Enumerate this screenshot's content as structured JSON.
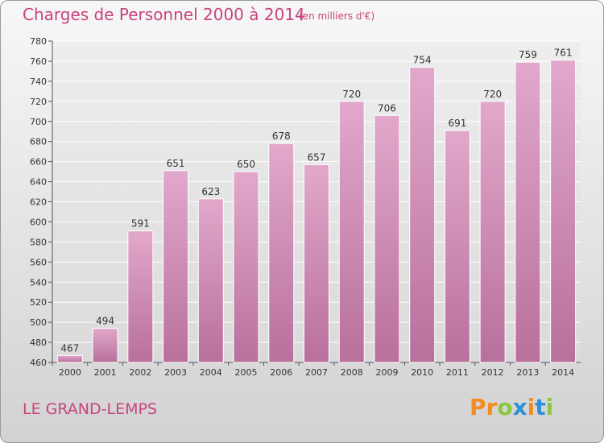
{
  "header": {
    "title": "Charges de Personnel 2000 à 2014",
    "subtitle": "(en milliers d'€)"
  },
  "footer": {
    "commune": "LE GRAND-LEMPS",
    "logo_text": "Proxiti"
  },
  "colors": {
    "accent": "#c8437f",
    "bar_top": "#e2a8cb",
    "bar_bottom": "#b8709c",
    "logo": [
      "#f28c1e",
      "#f28c1e",
      "#8cc63f",
      "#2f8fd6",
      "#f28c1e",
      "#2f8fd6",
      "#8cc63f"
    ]
  },
  "chart_data": {
    "type": "bar",
    "categories": [
      "2000",
      "2001",
      "2002",
      "2003",
      "2004",
      "2005",
      "2006",
      "2007",
      "2008",
      "2009",
      "2010",
      "2011",
      "2012",
      "2013",
      "2014"
    ],
    "values": [
      467,
      494,
      591,
      651,
      623,
      650,
      678,
      657,
      720,
      706,
      754,
      691,
      720,
      759,
      761
    ],
    "title": "Charges de Personnel 2000 à 2014",
    "xlabel": "",
    "ylabel": "",
    "ylim": [
      460,
      780
    ],
    "yticks": [
      460,
      480,
      500,
      520,
      540,
      560,
      580,
      600,
      620,
      640,
      660,
      680,
      700,
      720,
      740,
      760,
      780
    ],
    "grid": true,
    "legend": "none"
  }
}
